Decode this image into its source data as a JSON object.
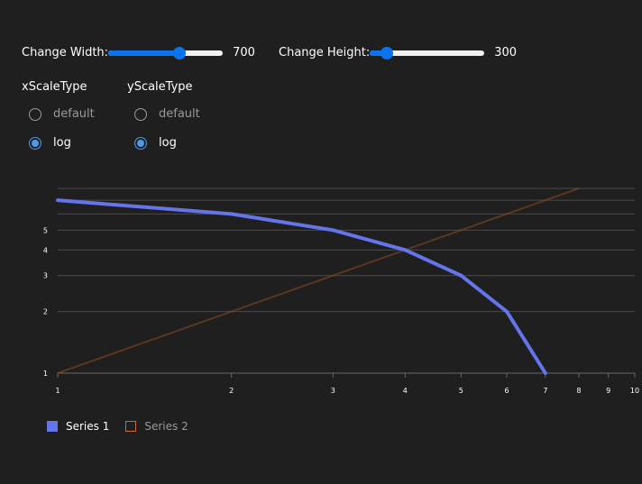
{
  "controls": {
    "width": {
      "label": "Change Width:",
      "value": "700",
      "fraction": 0.62
    },
    "height": {
      "label": "Change Height:",
      "value": "300",
      "fraction": 0.15
    }
  },
  "scale_groups": [
    {
      "title": "xScaleType",
      "options": [
        "default",
        "log"
      ],
      "selected": "log"
    },
    {
      "title": "yScaleType",
      "options": [
        "default",
        "log"
      ],
      "selected": "log"
    }
  ],
  "colors": {
    "series1": "#6474ea",
    "series2": "#8a4a24",
    "grid": "#4a4a4a",
    "radio_selected": "#4c9ae8",
    "slider": "#0a74ee"
  },
  "chart_data": {
    "type": "line",
    "x_scale": "log",
    "y_scale": "log",
    "xlim": [
      1,
      10
    ],
    "ylim": [
      1,
      8
    ],
    "x_ticks": [
      "1",
      "2",
      "3",
      "4",
      "5",
      "6",
      "7",
      "8",
      "9",
      "10"
    ],
    "y_ticks": [
      "1",
      "2",
      "3",
      "4",
      "5"
    ],
    "grid": true,
    "legend_position": "bottom-left",
    "series": [
      {
        "name": "Series 1",
        "x": [
          1,
          2,
          3,
          4,
          5,
          6,
          7
        ],
        "y": [
          7,
          6,
          5,
          4,
          3,
          2,
          1
        ]
      },
      {
        "name": "Series 2",
        "x": [
          1,
          2,
          3,
          4,
          5,
          6,
          7,
          8
        ],
        "y": [
          1,
          2,
          3,
          4,
          5,
          6,
          7,
          8
        ]
      }
    ]
  }
}
